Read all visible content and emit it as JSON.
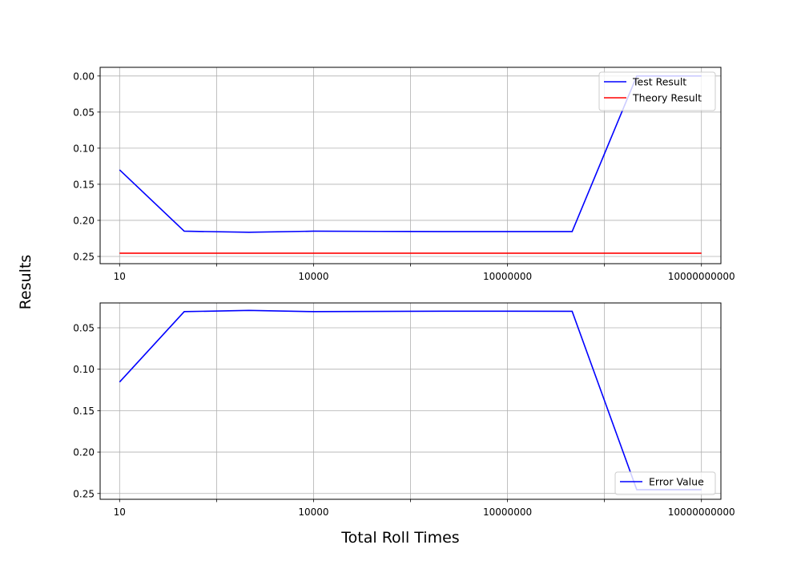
{
  "figure": {
    "ylabel": "Results",
    "xlabel": "Total Roll Times"
  },
  "chart_data": [
    {
      "type": "line",
      "x_scale": "log",
      "y_inverted": true,
      "x_ticks": [
        10,
        10000,
        10000000,
        10000000000
      ],
      "x_tick_labels": [
        "10",
        "10000",
        "10000000",
        "10000000000"
      ],
      "xlim": [
        5,
        20000000000
      ],
      "y_ticks": [
        0.0,
        0.05,
        0.1,
        0.15,
        0.2,
        0.25
      ],
      "y_tick_labels": [
        "0.00",
        "0.05",
        "0.10",
        "0.15",
        "0.20",
        "0.25"
      ],
      "ylim": [
        -0.012,
        0.26
      ],
      "grid": true,
      "legend_position": "upper right",
      "series": [
        {
          "name": "Test Result",
          "color": "#0000ff",
          "x": [
            10,
            100,
            1000,
            10000,
            100000,
            1000000,
            10000000,
            100000000,
            1000000000,
            10000000000
          ],
          "y": [
            0.13,
            0.215,
            0.2165,
            0.215,
            0.2153,
            0.2155,
            0.2155,
            0.2155,
            0.0,
            0.0
          ]
        },
        {
          "name": "Theory Result",
          "color": "#ff0000",
          "x": [
            10,
            10000000000
          ],
          "y": [
            0.2455,
            0.2455
          ]
        }
      ]
    },
    {
      "type": "line",
      "x_scale": "log",
      "y_inverted": true,
      "x_ticks": [
        10,
        10000,
        10000000,
        10000000000
      ],
      "x_tick_labels": [
        "10",
        "10000",
        "10000000",
        "10000000000"
      ],
      "xlim": [
        5,
        20000000000
      ],
      "y_ticks": [
        0.05,
        0.1,
        0.15,
        0.2,
        0.25
      ],
      "y_tick_labels": [
        "0.05",
        "0.10",
        "0.15",
        "0.20",
        "0.25"
      ],
      "ylim": [
        0.02,
        0.257
      ],
      "grid": true,
      "legend_position": "lower right",
      "series": [
        {
          "name": "Error Value",
          "color": "#0000ff",
          "x": [
            10,
            100,
            1000,
            10000,
            100000,
            1000000,
            10000000,
            100000000,
            1000000000,
            10000000000
          ],
          "y": [
            0.1155,
            0.0305,
            0.029,
            0.0305,
            0.0302,
            0.03,
            0.03,
            0.0301,
            0.2455,
            0.2455
          ]
        }
      ]
    }
  ]
}
